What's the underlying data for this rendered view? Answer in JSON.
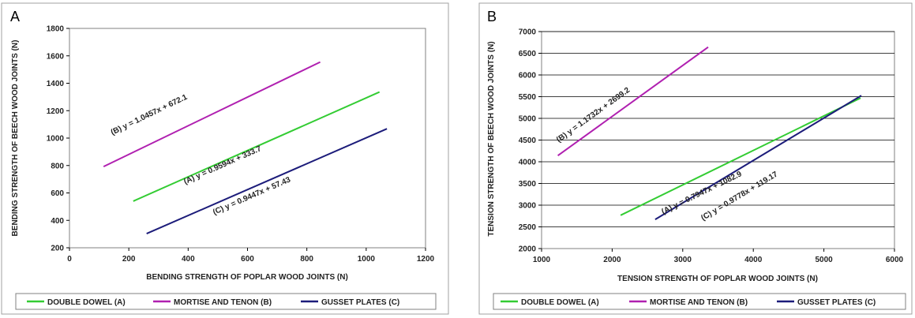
{
  "chart_data": [
    {
      "type": "line",
      "panel": "A",
      "xlabel": "BENDING STRENGTH OF POPLAR WOOD JOINTS (N)",
      "ylabel": "BENDING STRENGTH OF BEECH WOOD JOINTS (N)",
      "xlim": [
        0,
        1200
      ],
      "ylim": [
        200,
        1800
      ],
      "xticks": [
        "0",
        "200",
        "400",
        "600",
        "800",
        "1000",
        "1200"
      ],
      "yticks": [
        "200",
        "400",
        "600",
        "800",
        "1000",
        "1200",
        "1400",
        "1600",
        "1800"
      ],
      "grid": false,
      "legend_position": "bottom",
      "series": [
        {
          "name": "DOUBLE DOWEL (A)",
          "color": "#33cc33",
          "x": [
            215,
            1045
          ],
          "y": [
            540,
            1336
          ],
          "equation": "(A) y = 0.9594x + 333.7"
        },
        {
          "name": "MORTISE AND TENON (B)",
          "color": "#b020b0",
          "x": [
            115,
            845
          ],
          "y": [
            792,
            1555
          ],
          "equation": "(B) y = 1.0457x + 672.1"
        },
        {
          "name": "GUSSET PLATES (C)",
          "color": "#1c1c7a",
          "x": [
            260,
            1070
          ],
          "y": [
            303,
            1068
          ],
          "equation": "(C) y = 0.9447x + 57.43"
        }
      ]
    },
    {
      "type": "line",
      "panel": "B",
      "xlabel": "TENSION STRENGTH OF POPLAR WOOD JOINTS (N)",
      "ylabel": "TENSION STRENGTH OF BEECH WOOD JOINTS (N)",
      "xlim": [
        1000,
        6000
      ],
      "ylim": [
        2000,
        7000
      ],
      "xticks": [
        "1000",
        "2000",
        "3000",
        "4000",
        "5000",
        "6000"
      ],
      "yticks": [
        "2000",
        "2500",
        "3000",
        "3500",
        "4000",
        "4500",
        "5000",
        "5500",
        "6000",
        "6500",
        "7000"
      ],
      "grid": true,
      "legend_position": "bottom",
      "series": [
        {
          "name": "DOUBLE DOWEL (A)",
          "color": "#33cc33",
          "x": [
            2120,
            5520
          ],
          "y": [
            2767,
            5469
          ],
          "equation": "(A) y = 0.7947x + 1082.9"
        },
        {
          "name": "MORTISE AND TENON (B)",
          "color": "#b020b0",
          "x": [
            1230,
            3360
          ],
          "y": [
            4142,
            6641
          ],
          "equation": "(B) y = 1.1732x + 2699.2"
        },
        {
          "name": "GUSSET PLATES (C)",
          "color": "#1c1c7a",
          "x": [
            2610,
            5530
          ],
          "y": [
            2671,
            5526
          ],
          "equation": "(C) y = 0.9778x + 119.17"
        }
      ]
    }
  ]
}
